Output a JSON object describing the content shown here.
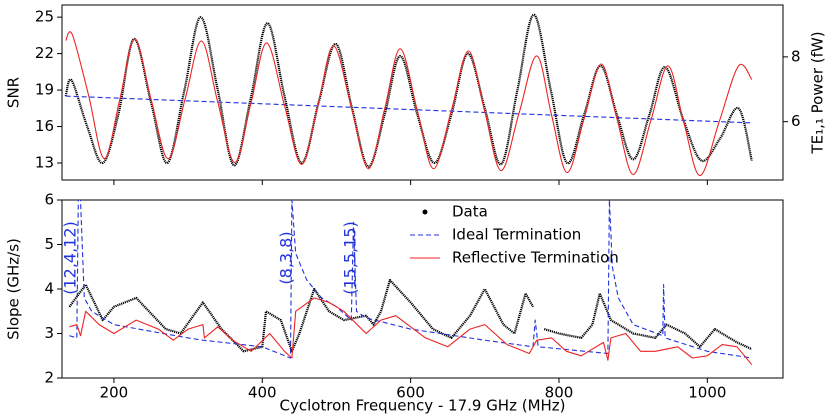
{
  "chart_data": [
    {
      "type": "line",
      "ylabel": "SNR",
      "y2label": "TE₁,₁ Power (fW)",
      "smooth": true,
      "xlim": [
        130,
        1102
      ],
      "xticks": [
        200,
        400,
        600,
        800,
        1000
      ],
      "ylim": [
        11.6,
        26
      ],
      "yticks": [
        13,
        16,
        19,
        22,
        25
      ],
      "y2lim": [
        4.2,
        9.6
      ],
      "y2ticks": [
        6,
        8
      ],
      "series": [
        {
          "style": "dots",
          "color": "#000000",
          "x": [
            135,
            143,
            164,
            185,
            206,
            227,
            250,
            272,
            295,
            317,
            340,
            362,
            385,
            407,
            430,
            453,
            476,
            499,
            521,
            543,
            565,
            586,
            609,
            632,
            655,
            677,
            700,
            722,
            744,
            766,
            789,
            811,
            834,
            856,
            878,
            900,
            922,
            943,
            968,
            992,
            1017,
            1042,
            1060
          ],
          "values": [
            18.5,
            19.8,
            16,
            13,
            17,
            23.2,
            18,
            13,
            19,
            25,
            19,
            12.8,
            18.5,
            24.5,
            18.5,
            13,
            18,
            22.8,
            17.5,
            12.7,
            17,
            21.8,
            17,
            13,
            17,
            22,
            17.5,
            12.9,
            19,
            25.2,
            19,
            13,
            17,
            21,
            17,
            13.3,
            17,
            20.9,
            16.5,
            13.2,
            15,
            17.5,
            13.2
          ]
        },
        {
          "style": "dashed",
          "color": "#2233dd",
          "x": [
            135,
            1060
          ],
          "values": [
            18.5,
            16.3
          ]
        },
        {
          "style": "solid",
          "color": "#ee2222",
          "axis": "y2",
          "x": [
            135,
            144,
            166,
            187,
            208,
            228,
            250,
            273,
            296,
            318,
            340,
            363,
            385,
            406,
            430,
            453,
            475,
            496,
            520,
            543,
            565,
            586,
            609,
            631,
            655,
            678,
            700,
            722,
            746,
            770,
            790,
            811,
            834,
            857,
            878,
            900,
            924,
            947,
            968,
            990,
            1016,
            1042,
            1060
          ],
          "values": [
            8.5,
            8.68,
            6.8,
            4.86,
            6.7,
            8.55,
            6.7,
            4.86,
            6.7,
            8.49,
            6.6,
            4.74,
            6.6,
            8.43,
            6.5,
            4.68,
            6.5,
            8.34,
            6.45,
            4.55,
            6.4,
            8.25,
            6.35,
            4.55,
            6.35,
            8.18,
            6.3,
            4.49,
            6.25,
            8.03,
            6.2,
            4.43,
            6.1,
            7.78,
            6.1,
            4.37,
            6.05,
            7.72,
            6.0,
            4.34,
            6.0,
            7.72,
            7.3
          ]
        }
      ]
    },
    {
      "type": "line",
      "ylabel": "Slope (GHz/s)",
      "xlabel": "Cyclotron Frequency - 17.9 GHz (MHz)",
      "smooth": false,
      "xlim": [
        130,
        1102
      ],
      "xticks": [
        200,
        400,
        600,
        800,
        1000
      ],
      "ylim": [
        2,
        6
      ],
      "yticks": [
        2,
        3,
        4,
        5,
        6
      ],
      "legend": "upper center",
      "annotations": [
        "(12,4,12)",
        "(8,3,8)",
        "(15,5,15)"
      ],
      "annotation_color": "#2233dd",
      "series": [
        {
          "name": "Data",
          "style": "dots",
          "color": "#000000",
          "x": [
            140,
            162,
            185,
            200,
            230,
            270,
            290,
            320,
            345,
            375,
            400,
            405,
            425,
            440,
            450,
            462,
            470,
            490,
            510,
            540,
            550,
            560,
            572,
            600,
            630,
            655,
            680,
            700,
            725,
            740,
            755,
            765,
            770,
            780,
            800,
            830,
            845,
            855,
            870,
            900,
            930,
            945,
            970,
            990,
            1010,
            1040,
            1060
          ],
          "values": [
            3.6,
            4.1,
            3.3,
            3.6,
            3.8,
            3.1,
            3.0,
            3.7,
            3.1,
            2.6,
            2.7,
            3.5,
            3.3,
            2.6,
            3.0,
            3.6,
            4.0,
            3.5,
            3.3,
            3.4,
            3.2,
            3.5,
            4.2,
            3.7,
            3.1,
            2.9,
            3.4,
            4.0,
            3.2,
            3.0,
            3.9,
            3.6,
            null,
            3.1,
            3.0,
            2.9,
            3.2,
            3.9,
            3.3,
            3.0,
            2.9,
            3.2,
            3.0,
            2.7,
            3.1,
            2.8,
            2.65
          ]
        },
        {
          "name": "Ideal Termination",
          "style": "dashed",
          "color": "#2233dd",
          "x": [
            140,
            150,
            152,
            155,
            160,
            170,
            200,
            250,
            300,
            320,
            400,
            438,
            440,
            445,
            460,
            480,
            500,
            520,
            523,
            527,
            540,
            600,
            700,
            765,
            768,
            772,
            866,
            868,
            872,
            880,
            900,
            940,
            941,
            943,
            1000,
            1060
          ],
          "values": [
            2.95,
            2.9,
            6,
            6,
            3.8,
            3.5,
            3.2,
            3.05,
            2.9,
            2.85,
            2.7,
            2.45,
            6,
            4.8,
            4.2,
            3.8,
            3.6,
            3.3,
            5.5,
            3.5,
            3.35,
            3.1,
            2.85,
            2.7,
            3.3,
            2.7,
            2.55,
            6,
            4.5,
            3.8,
            3.2,
            2.95,
            4.1,
            2.9,
            2.6,
            2.45
          ]
        },
        {
          "name": "Reflective Termination",
          "style": "solid",
          "color": "#ee2222",
          "x": [
            140,
            150,
            155,
            162,
            180,
            200,
            230,
            260,
            280,
            300,
            320,
            322,
            340,
            360,
            385,
            410,
            430,
            440,
            445,
            470,
            490,
            510,
            540,
            560,
            580,
            620,
            650,
            680,
            700,
            730,
            760,
            770,
            790,
            810,
            830,
            860,
            866,
            870,
            890,
            910,
            930,
            960,
            980,
            1000,
            1020,
            1040,
            1060
          ],
          "values": [
            3.15,
            3.2,
            2.95,
            3.5,
            3.2,
            3.0,
            3.3,
            3.1,
            2.85,
            3.1,
            3.2,
            2.9,
            3.15,
            2.85,
            2.6,
            3.0,
            2.6,
            2.45,
            3.5,
            3.8,
            3.7,
            3.5,
            3.0,
            3.3,
            3.4,
            2.9,
            2.7,
            3.1,
            3.2,
            2.75,
            2.55,
            2.85,
            2.9,
            2.6,
            2.5,
            2.8,
            2.4,
            2.9,
            3.0,
            2.6,
            2.6,
            2.7,
            2.45,
            2.5,
            2.75,
            2.7,
            2.3
          ]
        }
      ]
    }
  ]
}
